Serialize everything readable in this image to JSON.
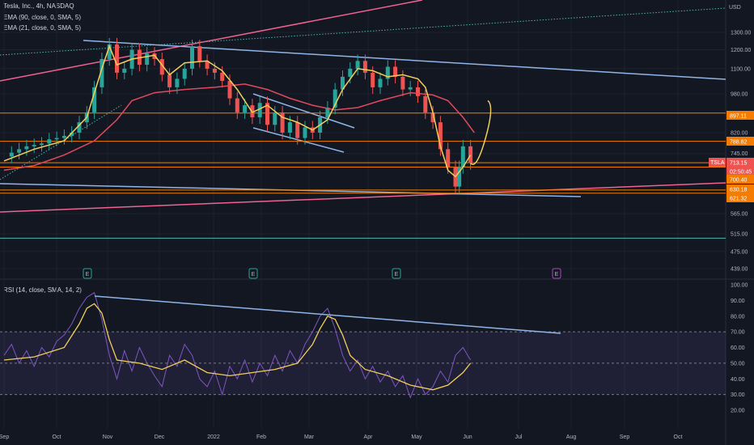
{
  "header": {
    "title": "Tesla, Inc., 4h, NASDAQ",
    "ema90": "EMA (90, close, 0, SMA, 5)",
    "ema21": "EMA (21, close, 0, SMA, 5)",
    "rsi": "RSI (14, close, SMA, 14, 2)",
    "currency": "USD"
  },
  "colors": {
    "background": "#131722",
    "ema90": "#e04a5c",
    "ema21": "#f2d05c",
    "rsi": "#7e57c2",
    "rsi_ma": "#f2d05c",
    "trendline": "#90b4e8",
    "support": "#f57c00",
    "rising": "#f06292",
    "teal": "#4db6ac"
  },
  "chart_data": [
    {
      "type": "candlestick",
      "title": "Tesla, Inc., 4h, NASDAQ",
      "x_ticks": [
        "Sep",
        "Oct",
        "Nov",
        "Dec",
        "2022",
        "Feb",
        "Mar",
        "Apr",
        "May",
        "Jun",
        "Jul",
        "Aug",
        "Sep",
        "Oct"
      ],
      "y_ticks": [
        1300,
        1200,
        1100,
        980,
        820,
        745,
        565,
        515,
        475,
        439
      ],
      "y_scale": "log",
      "ylim": [
        420,
        1500
      ],
      "price_labels": [
        {
          "value": "897.11",
          "style": "orange"
        },
        {
          "value": "788.82",
          "style": "orange"
        },
        {
          "value": "713.15",
          "style": "current"
        },
        {
          "value": "02:50:45",
          "style": "timer"
        },
        {
          "value": "700.40",
          "style": "orange"
        },
        {
          "value": "630.18",
          "style": "orange"
        },
        {
          "value": "621.32",
          "style": "orange"
        }
      ],
      "symbol_tag": "TSLA",
      "horizontal_levels": [
        897,
        788,
        714,
        700,
        630,
        621,
        505
      ],
      "series": [
        {
          "name": "EMA (90, close, 0, SMA, 5)",
          "values": [
            [
              0,
              690
            ],
            [
              4,
              705
            ],
            [
              8,
              740
            ],
            [
              12,
              790
            ],
            [
              15,
              870
            ],
            [
              17,
              950
            ],
            [
              20,
              985
            ],
            [
              24,
              1000
            ],
            [
              28,
              1010
            ],
            [
              32,
              1025
            ],
            [
              35,
              1000
            ],
            [
              38,
              960
            ],
            [
              41,
              930
            ],
            [
              44,
              910
            ],
            [
              47,
              920
            ],
            [
              50,
              950
            ],
            [
              54,
              985
            ],
            [
              57,
              975
            ],
            [
              59,
              950
            ],
            [
              61,
              880
            ],
            [
              62.5,
              820
            ]
          ]
        },
        {
          "name": "EMA (21, close, 0, SMA, 5)",
          "values": [
            [
              0,
              720
            ],
            [
              4,
              760
            ],
            [
              8,
              790
            ],
            [
              11,
              880
            ],
            [
              13,
              1100
            ],
            [
              14,
              1220
            ],
            [
              15,
              1120
            ],
            [
              17,
              1150
            ],
            [
              20,
              1170
            ],
            [
              22,
              1070
            ],
            [
              24,
              1130
            ],
            [
              27,
              1140
            ],
            [
              29,
              1090
            ],
            [
              31,
              1000
            ],
            [
              33,
              900
            ],
            [
              35,
              930
            ],
            [
              37,
              880
            ],
            [
              39,
              860
            ],
            [
              41,
              830
            ],
            [
              43,
              870
            ],
            [
              45,
              1000
            ],
            [
              47,
              1100
            ],
            [
              49,
              1090
            ],
            [
              51,
              1060
            ],
            [
              53,
              1070
            ],
            [
              55,
              1050
            ],
            [
              56,
              1010
            ],
            [
              57,
              900
            ],
            [
              58,
              770
            ],
            [
              59,
              690
            ],
            [
              60,
              670
            ],
            [
              61,
              700
            ],
            [
              62,
              740
            ]
          ]
        }
      ],
      "candles_close": [
        [
          0,
          735
        ],
        [
          1,
          748
        ],
        [
          2,
          760
        ],
        [
          3,
          770
        ],
        [
          4,
          775
        ],
        [
          5,
          780
        ],
        [
          6,
          795
        ],
        [
          7,
          800
        ],
        [
          8,
          808
        ],
        [
          9,
          820
        ],
        [
          10,
          860
        ],
        [
          11,
          900
        ],
        [
          12,
          1010
        ],
        [
          13,
          1150
        ],
        [
          14,
          1230
        ],
        [
          15,
          1080
        ],
        [
          16,
          1100
        ],
        [
          17,
          1200
        ],
        [
          18,
          1120
        ],
        [
          19,
          1180
        ],
        [
          20,
          1150
        ],
        [
          21,
          1070
        ],
        [
          22,
          1010
        ],
        [
          23,
          1050
        ],
        [
          24,
          1100
        ],
        [
          25,
          1220
        ],
        [
          26,
          1140
        ],
        [
          27,
          1100
        ],
        [
          28,
          1080
        ],
        [
          29,
          1040
        ],
        [
          30,
          960
        ],
        [
          31,
          900
        ],
        [
          32,
          930
        ],
        [
          33,
          880
        ],
        [
          34,
          940
        ],
        [
          35,
          850
        ],
        [
          36,
          900
        ],
        [
          37,
          820
        ],
        [
          38,
          860
        ],
        [
          39,
          800
        ],
        [
          40,
          840
        ],
        [
          41,
          820
        ],
        [
          42,
          880
        ],
        [
          43,
          920
        ],
        [
          44,
          1000
        ],
        [
          45,
          1060
        ],
        [
          46,
          1100
        ],
        [
          47,
          1140
        ],
        [
          48,
          1080
        ],
        [
          49,
          1010
        ],
        [
          50,
          1050
        ],
        [
          51,
          1110
        ],
        [
          52,
          1060
        ],
        [
          53,
          1000
        ],
        [
          54,
          1010
        ],
        [
          55,
          970
        ],
        [
          56,
          900
        ],
        [
          57,
          860
        ],
        [
          58,
          760
        ],
        [
          59,
          700
        ],
        [
          60,
          640
        ],
        [
          60.5,
          700
        ],
        [
          61,
          770
        ],
        [
          62,
          713
        ]
      ]
    },
    {
      "type": "line",
      "title": "RSI (14, close, SMA, 14, 2)",
      "y_ticks": [
        100,
        90,
        80,
        70,
        60,
        50,
        40,
        30,
        20
      ],
      "ylim": [
        18,
        102
      ],
      "x_ticks": [
        "Sep",
        "Oct",
        "Nov",
        "Dec",
        "2022",
        "Feb",
        "Mar",
        "Apr",
        "May",
        "Jun",
        "Jul",
        "Aug",
        "Sep",
        "Oct"
      ],
      "series": [
        {
          "name": "RSI",
          "values": [
            [
              0,
              55
            ],
            [
              1,
              62
            ],
            [
              2,
              50
            ],
            [
              3,
              58
            ],
            [
              4,
              48
            ],
            [
              5,
              60
            ],
            [
              6,
              54
            ],
            [
              7,
              64
            ],
            [
              8,
              68
            ],
            [
              9,
              75
            ],
            [
              10,
              85
            ],
            [
              11,
              92
            ],
            [
              12,
              95
            ],
            [
              13,
              78
            ],
            [
              14,
              55
            ],
            [
              15,
              40
            ],
            [
              16,
              58
            ],
            [
              17,
              45
            ],
            [
              18,
              60
            ],
            [
              19,
              50
            ],
            [
              20,
              42
            ],
            [
              21,
              35
            ],
            [
              22,
              55
            ],
            [
              23,
              48
            ],
            [
              24,
              62
            ],
            [
              25,
              55
            ],
            [
              26,
              40
            ],
            [
              27,
              35
            ],
            [
              28,
              45
            ],
            [
              29,
              30
            ],
            [
              30,
              48
            ],
            [
              31,
              40
            ],
            [
              32,
              52
            ],
            [
              33,
              38
            ],
            [
              34,
              50
            ],
            [
              35,
              42
            ],
            [
              36,
              55
            ],
            [
              37,
              45
            ],
            [
              38,
              58
            ],
            [
              39,
              50
            ],
            [
              40,
              62
            ],
            [
              41,
              70
            ],
            [
              42,
              80
            ],
            [
              43,
              85
            ],
            [
              44,
              72
            ],
            [
              45,
              55
            ],
            [
              46,
              45
            ],
            [
              47,
              52
            ],
            [
              48,
              40
            ],
            [
              49,
              48
            ],
            [
              50,
              38
            ],
            [
              51,
              45
            ],
            [
              52,
              35
            ],
            [
              53,
              42
            ],
            [
              54,
              28
            ],
            [
              55,
              40
            ],
            [
              56,
              30
            ],
            [
              57,
              35
            ],
            [
              58,
              45
            ],
            [
              59,
              38
            ],
            [
              60,
              55
            ],
            [
              61,
              60
            ],
            [
              62,
              52
            ]
          ]
        },
        {
          "name": "RSI MA",
          "values": [
            [
              0,
              52
            ],
            [
              4,
              54
            ],
            [
              8,
              60
            ],
            [
              10,
              75
            ],
            [
              11,
              85
            ],
            [
              12,
              88
            ],
            [
              13,
              82
            ],
            [
              14,
              65
            ],
            [
              15,
              52
            ],
            [
              18,
              50
            ],
            [
              21,
              46
            ],
            [
              24,
              52
            ],
            [
              27,
              44
            ],
            [
              30,
              42
            ],
            [
              33,
              44
            ],
            [
              36,
              46
            ],
            [
              39,
              50
            ],
            [
              41,
              62
            ],
            [
              42,
              72
            ],
            [
              43,
              80
            ],
            [
              44,
              78
            ],
            [
              45,
              68
            ],
            [
              46,
              55
            ],
            [
              48,
              46
            ],
            [
              51,
              42
            ],
            [
              54,
              36
            ],
            [
              57,
              33
            ],
            [
              59,
              36
            ],
            [
              61,
              44
            ],
            [
              62,
              50
            ]
          ]
        }
      ],
      "band": [
        30,
        70
      ]
    }
  ]
}
